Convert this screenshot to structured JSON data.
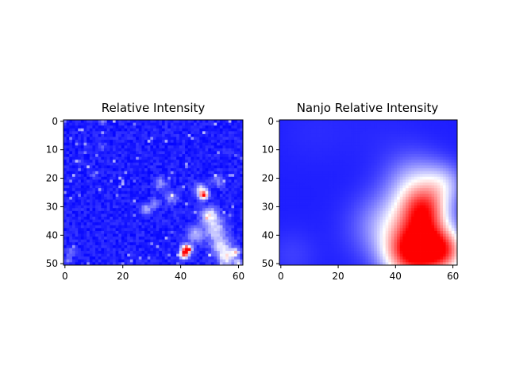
{
  "figure": {
    "background": "#ffffff"
  },
  "chart_data": [
    {
      "type": "heatmap",
      "title": "Relative Intensity",
      "xlabel": "",
      "ylabel": "",
      "colormap": "bwr",
      "grid": false,
      "x_ticks": [
        0,
        20,
        40,
        60
      ],
      "y_ticks": [
        0,
        10,
        20,
        30,
        40,
        50
      ],
      "xlim": [
        -0.5,
        61.5
      ],
      "ylim": [
        50.5,
        -0.5
      ],
      "n_cols": 62,
      "n_rows": 51,
      "value_range": [
        0,
        1
      ],
      "baseline": 0.06,
      "texture": "noisy",
      "noise_amplitude": 0.05,
      "hotspots": [
        {
          "x": 42,
          "y": 45,
          "value": 1.0,
          "radius": 1.2
        },
        {
          "x": 41,
          "y": 47,
          "value": 0.75,
          "radius": 1.0
        },
        {
          "x": 48,
          "y": 26,
          "value": 0.85,
          "radius": 1.0
        },
        {
          "x": 47,
          "y": 24,
          "value": 0.45,
          "radius": 1.5
        },
        {
          "x": 50,
          "y": 33,
          "value": 0.5,
          "radius": 2.0
        },
        {
          "x": 52,
          "y": 38,
          "value": 0.42,
          "radius": 2.5
        },
        {
          "x": 54,
          "y": 44,
          "value": 0.4,
          "radius": 2.5
        },
        {
          "x": 56,
          "y": 48,
          "value": 0.45,
          "radius": 2.0
        },
        {
          "x": 45,
          "y": 40,
          "value": 0.35,
          "radius": 2.0
        },
        {
          "x": 33,
          "y": 22,
          "value": 0.3,
          "radius": 1.5
        },
        {
          "x": 28,
          "y": 31,
          "value": 0.35,
          "radius": 1.2
        },
        {
          "x": 31,
          "y": 29,
          "value": 0.3,
          "radius": 1.2
        },
        {
          "x": 37,
          "y": 27,
          "value": 0.28,
          "radius": 1.5
        },
        {
          "x": 53,
          "y": 21,
          "value": 0.25,
          "radius": 1.5
        },
        {
          "x": 59,
          "y": 46,
          "value": 0.5,
          "radius": 1.0
        },
        {
          "x": 60,
          "y": 50,
          "value": 0.45,
          "radius": 1.0
        },
        {
          "x": 2,
          "y": 46,
          "value": 0.25,
          "radius": 1.0
        },
        {
          "x": 1,
          "y": 49,
          "value": 0.22,
          "radius": 1.0
        },
        {
          "x": 13,
          "y": 0,
          "value": 0.3,
          "radius": 0.8
        },
        {
          "x": 13,
          "y": 9,
          "value": 0.22,
          "radius": 0.8
        },
        {
          "x": 10,
          "y": 19,
          "value": 0.2,
          "radius": 0.8
        }
      ]
    },
    {
      "type": "heatmap",
      "title": "Nanjo Relative Intensity",
      "xlabel": "",
      "ylabel": "",
      "colormap": "bwr",
      "grid": false,
      "x_ticks": [
        0,
        20,
        40,
        60
      ],
      "y_ticks": [
        0,
        10,
        20,
        30,
        40,
        50
      ],
      "xlim": [
        -0.5,
        61.5
      ],
      "ylim": [
        50.5,
        -0.5
      ],
      "n_cols": 62,
      "n_rows": 51,
      "value_range": [
        0,
        1
      ],
      "baseline": 0.06,
      "texture": "smooth",
      "noise_amplitude": 0,
      "hotspots": [
        {
          "x": 50,
          "y": 44,
          "value": 0.98,
          "radius": 7.0
        },
        {
          "x": 50,
          "y": 31,
          "value": 0.62,
          "radius": 5.5
        },
        {
          "x": 47,
          "y": 22,
          "value": 0.35,
          "radius": 7.0
        },
        {
          "x": 57,
          "y": 22,
          "value": 0.3,
          "radius": 5.0
        },
        {
          "x": 40,
          "y": 36,
          "value": 0.3,
          "radius": 8.0
        },
        {
          "x": 33,
          "y": 38,
          "value": 0.15,
          "radius": 8.0
        },
        {
          "x": 58,
          "y": 46,
          "value": 0.45,
          "radius": 5.0
        },
        {
          "x": 43,
          "y": 48,
          "value": 0.4,
          "radius": 6.0
        },
        {
          "x": 4,
          "y": 47,
          "value": 0.12,
          "radius": 6.0
        },
        {
          "x": 10,
          "y": 4,
          "value": 0.08,
          "radius": 8.0
        },
        {
          "x": 22,
          "y": 2,
          "value": 0.07,
          "radius": 8.0
        },
        {
          "x": 38,
          "y": 8,
          "value": 0.08,
          "radius": 8.0
        }
      ]
    }
  ]
}
